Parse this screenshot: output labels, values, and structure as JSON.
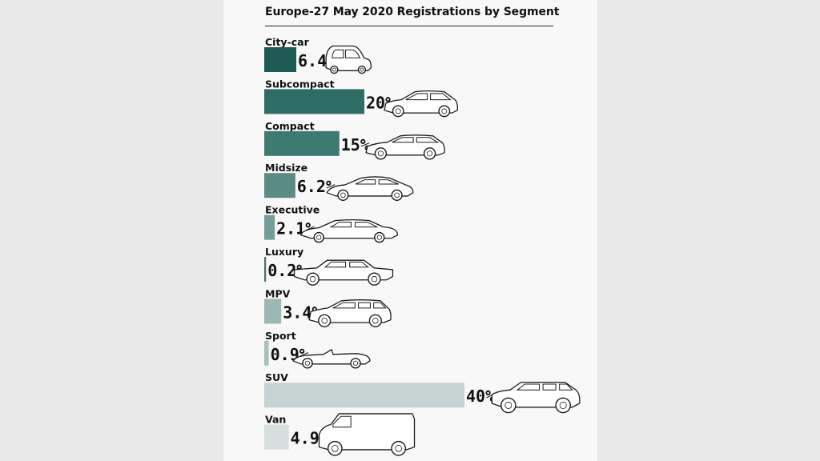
{
  "chart_data": {
    "type": "bar",
    "orientation": "horizontal",
    "title": "Europe-27 May 2020 Registrations by Segment",
    "unit": "%",
    "categories": [
      "City-car",
      "Subcompact",
      "Compact",
      "Midsize",
      "Executive",
      "Luxury",
      "MPV",
      "Sport",
      "SUV",
      "Van"
    ],
    "values": [
      6.4,
      20,
      15,
      6.2,
      2.1,
      0.2,
      3.4,
      0.9,
      40,
      4.9
    ],
    "value_labels": [
      "6.4%",
      "20%",
      "15%",
      "6.2%",
      "2.1%",
      "0.2%",
      "3.4%",
      "0.9%",
      "40%",
      "4.9%"
    ],
    "icons": [
      "city-car-icon",
      "hatchback-icon",
      "compact-hatch-icon",
      "fastback-icon",
      "sedan-icon",
      "luxury-sedan-icon",
      "mpv-icon",
      "convertible-icon",
      "suv-icon",
      "van-icon"
    ],
    "colors": [
      "#1d5a52",
      "#2e6d65",
      "#3d7a72",
      "#5a8b85",
      "#739e99",
      "#4d6f6b",
      "#9bb8b5",
      "#a9c1be",
      "#c7d3d2",
      "#d6dede"
    ],
    "xlim": [
      0,
      40
    ],
    "grid": false,
    "legend": "none"
  }
}
